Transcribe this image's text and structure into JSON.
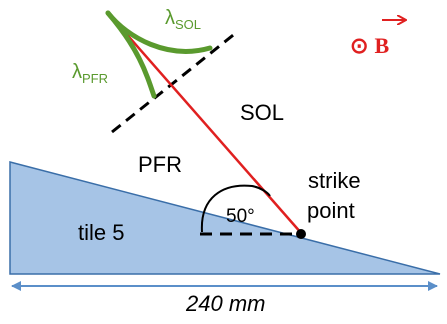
{
  "labels": {
    "lambda_sol": "λ",
    "lambda_sol_sub": "SOL",
    "lambda_pfr": "λ",
    "lambda_pfr_sub": "PFR",
    "sol": "SOL",
    "pfr": "PFR",
    "strike": "strike",
    "point": "point",
    "angle": "50°",
    "tile": "tile 5",
    "field_symbol": "⊙",
    "field_letter": "B",
    "dimension": "240 mm"
  },
  "colors": {
    "tile_fill": "#a6c4e6",
    "tile_stroke": "#3a6ea8",
    "field_line": "#e02020",
    "profile_curve": "#5a9a2e",
    "dimension_arrow": "#5b8fc9",
    "separatrix": "#000000"
  },
  "values": {
    "angle_deg": 50
  }
}
